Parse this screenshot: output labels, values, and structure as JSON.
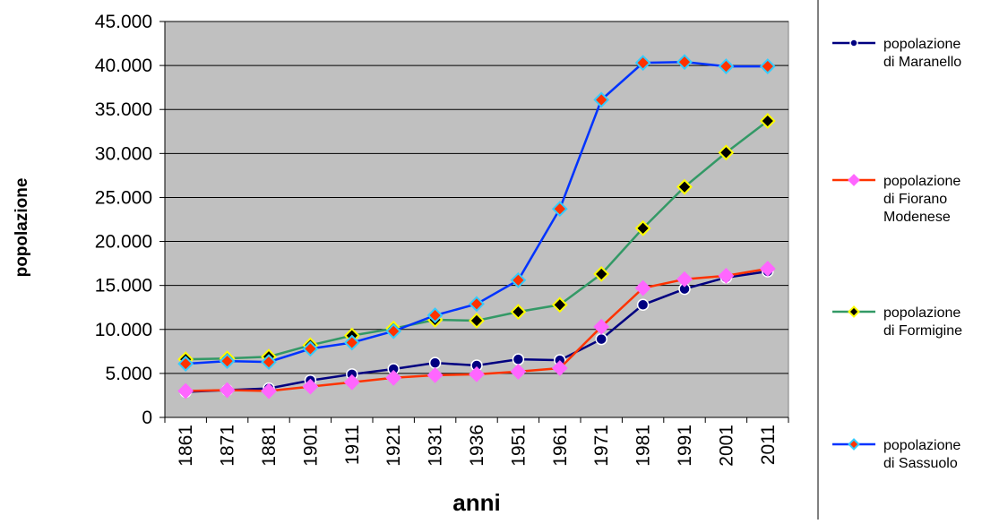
{
  "chart_data": {
    "type": "line",
    "xlabel": "anni",
    "ylabel": "popolazione",
    "categories": [
      "1861",
      "1871",
      "1881",
      "1901",
      "1911",
      "1921",
      "1931",
      "1936",
      "1951",
      "1961",
      "1971",
      "1981",
      "1991",
      "2001",
      "2011"
    ],
    "ylim": [
      0,
      45000
    ],
    "yticks": [
      {
        "value": 0,
        "label": "0"
      },
      {
        "value": 5000,
        "label": "5.000"
      },
      {
        "value": 10000,
        "label": "10.000"
      },
      {
        "value": 15000,
        "label": "15.000"
      },
      {
        "value": 20000,
        "label": "20.000"
      },
      {
        "value": 25000,
        "label": "25.000"
      },
      {
        "value": 30000,
        "label": "30.000"
      },
      {
        "value": 35000,
        "label": "35.000"
      },
      {
        "value": 40000,
        "label": "40.000"
      },
      {
        "value": 45000,
        "label": "45.000"
      }
    ],
    "grid": true,
    "legend_position": "right",
    "plot_background": "#c0c0c0",
    "series": [
      {
        "name_lines": [
          "popolazione",
          "di Maranello"
        ],
        "color": "#000080",
        "marker": "circle",
        "marker_fill": "#000080",
        "marker_stroke": "#ffffff",
        "values": [
          2900,
          3100,
          3300,
          4200,
          4900,
          5500,
          6200,
          5900,
          6600,
          6500,
          8900,
          12800,
          14600,
          15900,
          16600
        ]
      },
      {
        "name_lines": [
          "popolazione",
          "di Fiorano",
          "Modenese"
        ],
        "color": "#ff3300",
        "marker": "diamond",
        "marker_fill": "#ff66ff",
        "marker_stroke": "#ff66ff",
        "values": [
          3000,
          3100,
          3000,
          3500,
          4000,
          4500,
          4800,
          4900,
          5200,
          5600,
          10300,
          14700,
          15700,
          16100,
          16900
        ]
      },
      {
        "name_lines": [
          "popolazione",
          "di Formigine"
        ],
        "color": "#339966",
        "marker": "diamond",
        "marker_fill": "#000000",
        "marker_stroke": "#ffff00",
        "values": [
          6600,
          6700,
          6900,
          8200,
          9300,
          10100,
          11100,
          11000,
          12000,
          12800,
          16300,
          21500,
          26200,
          30100,
          33700
        ]
      },
      {
        "name_lines": [
          "popolazione",
          "di Sassuolo"
        ],
        "color": "#0033ff",
        "marker": "diamond",
        "marker_fill": "#ff3300",
        "marker_stroke": "#33ccff",
        "values": [
          6100,
          6400,
          6300,
          7800,
          8500,
          9800,
          11600,
          12900,
          15600,
          23700,
          36100,
          40300,
          40400,
          39900,
          39900
        ]
      }
    ]
  }
}
